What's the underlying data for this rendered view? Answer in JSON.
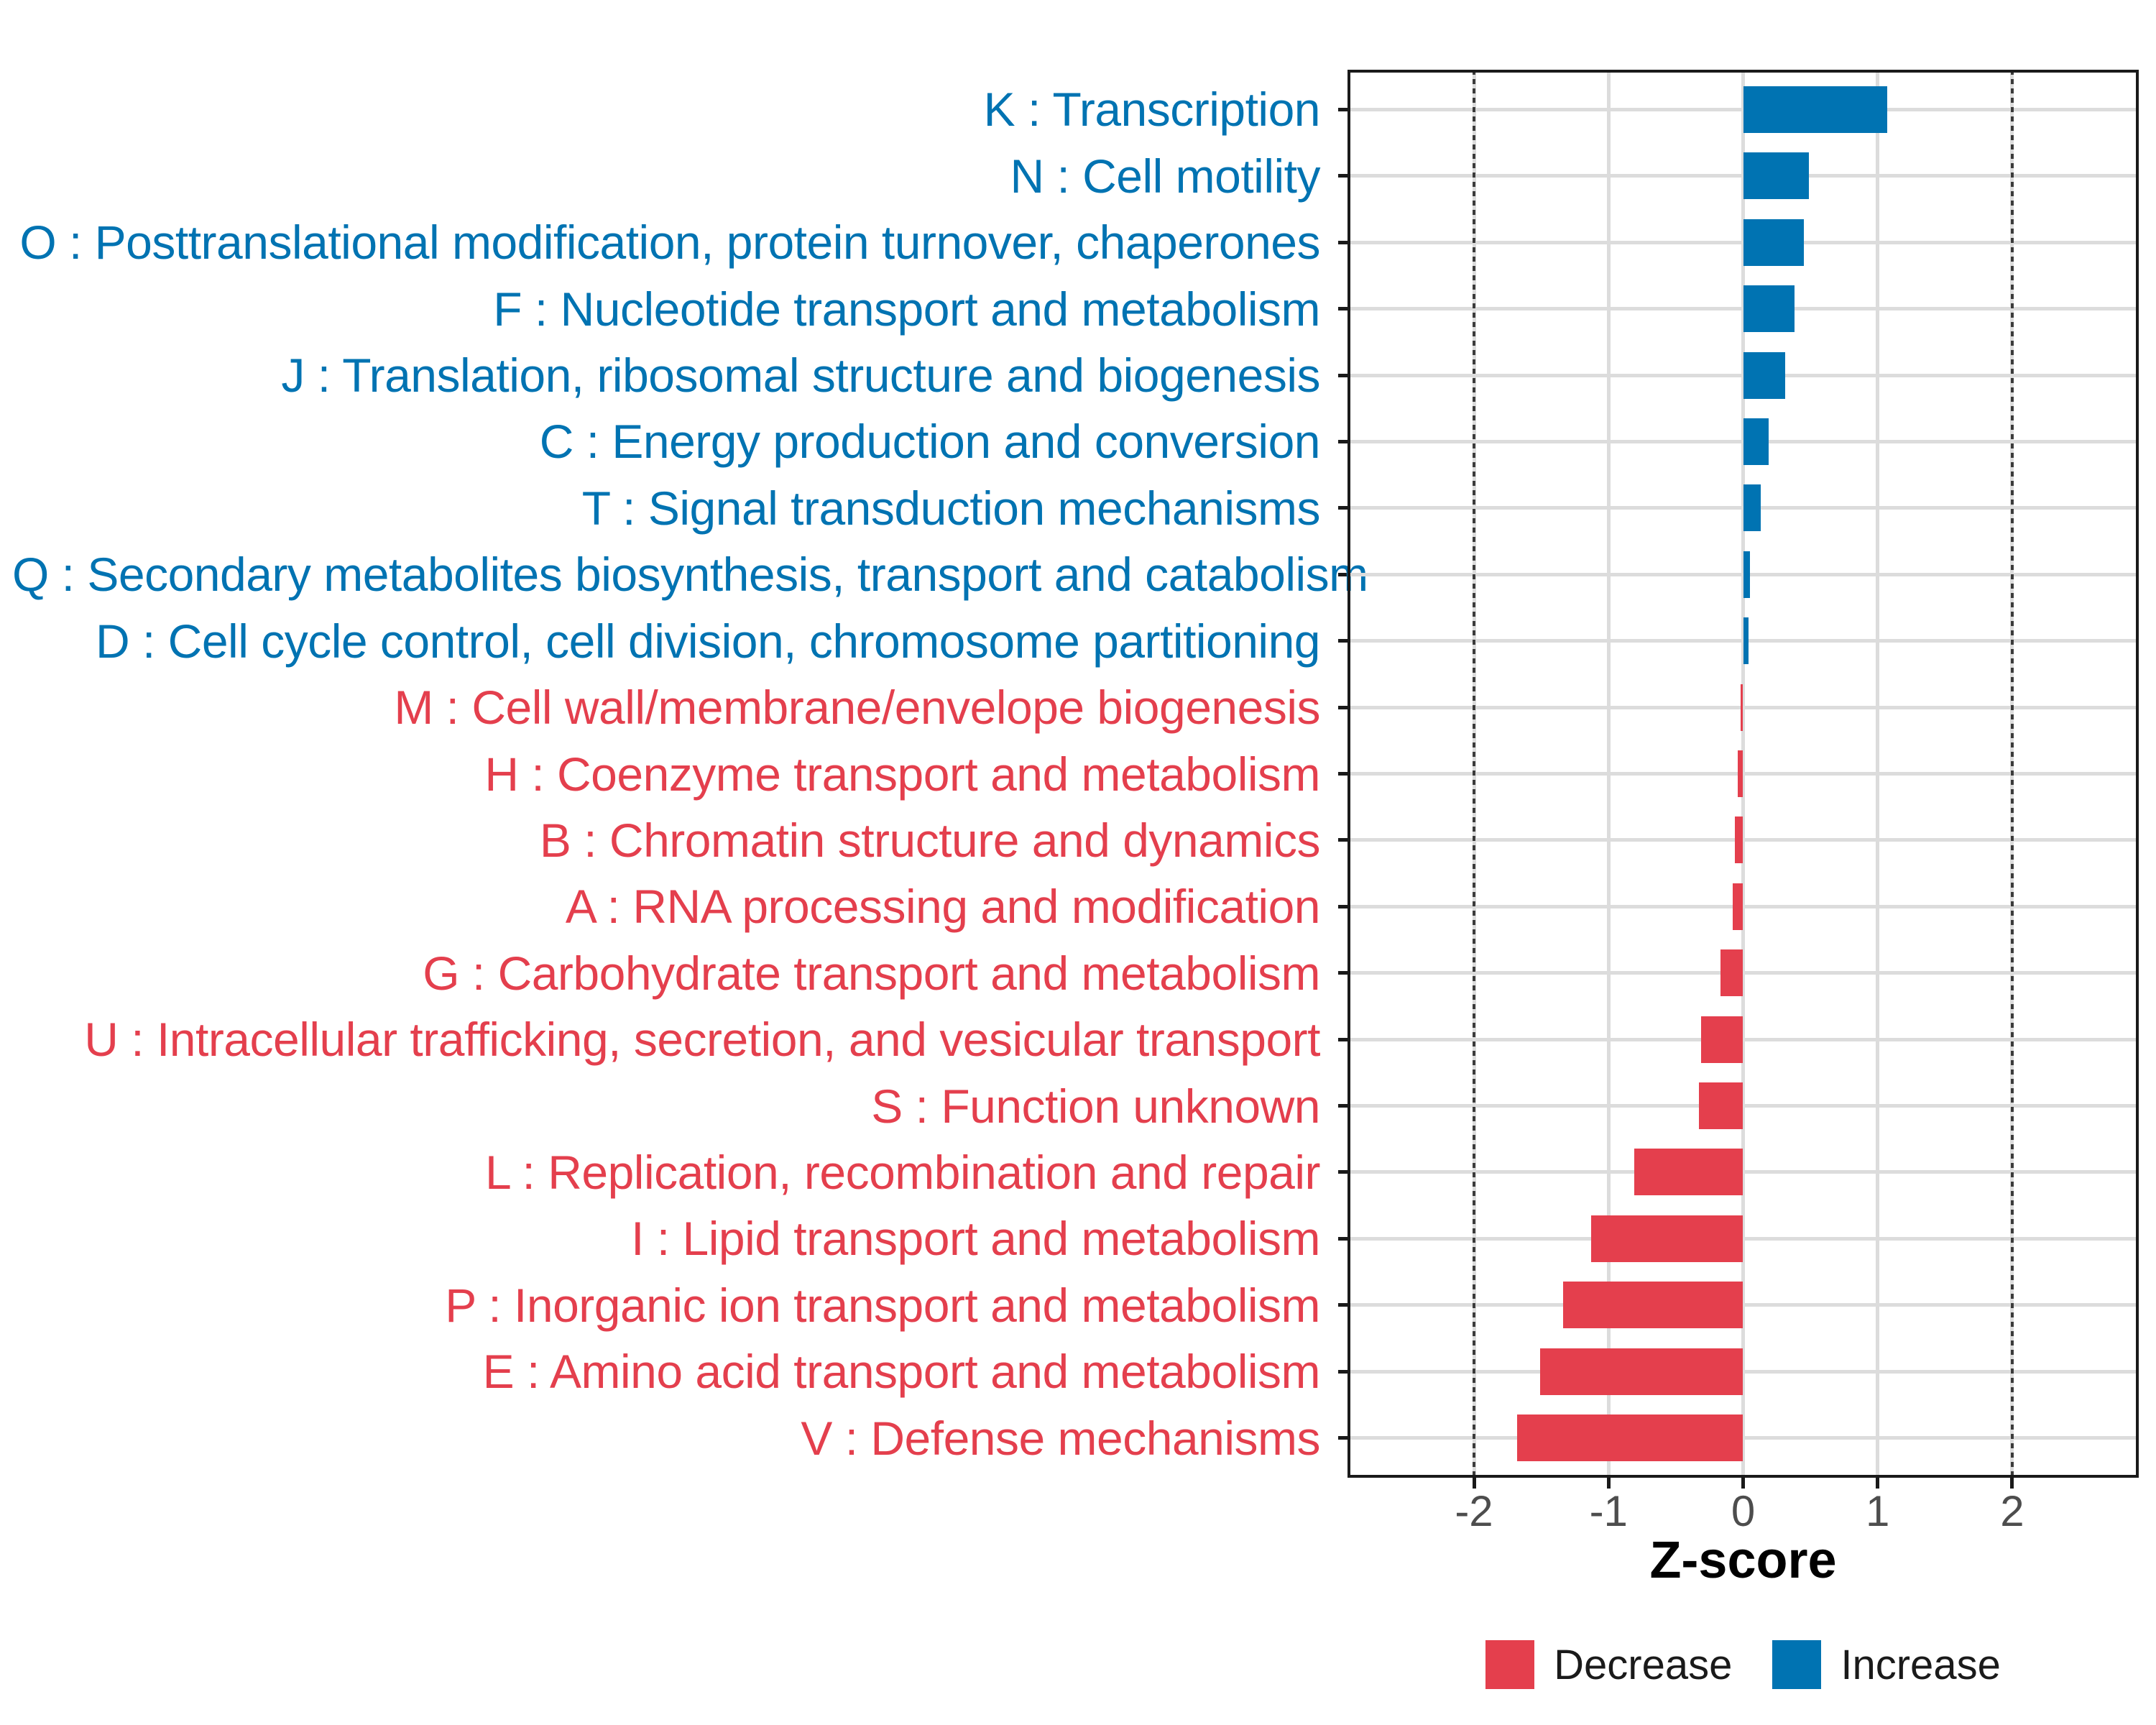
{
  "colors": {
    "increase": "#0073B2",
    "decrease": "#E43F4D",
    "grid": "#DCDCDC",
    "reference_line": "#3B3B3B",
    "axis_text": "#4D4D4D",
    "axis_title_text": "#000000",
    "panel_border": "#1A1A1A",
    "background": "#FFFFFF"
  },
  "chart_data": {
    "type": "bar",
    "orientation": "horizontal",
    "title": "",
    "xlabel": "Z-score",
    "ylabel": "",
    "xlim": [
      -2.94,
      2.94
    ],
    "x_ticks": [
      "-2",
      "-1",
      "0",
      "1",
      "2"
    ],
    "x_tick_values": [
      -2,
      -1,
      0,
      1,
      2
    ],
    "reference_lines": [
      -2,
      2
    ],
    "grid": true,
    "legend_position": "bottom",
    "legend": [
      {
        "label": "Decrease",
        "group": "decrease",
        "color": "#E43F4D"
      },
      {
        "label": "Increase",
        "group": "increase",
        "color": "#0073B2"
      }
    ],
    "categories": [
      {
        "label": "K : Transcription",
        "value": 1.07,
        "group": "increase"
      },
      {
        "label": "N : Cell motility",
        "value": 0.49,
        "group": "increase"
      },
      {
        "label": "O : Posttranslational modification, protein turnover, chaperones",
        "value": 0.45,
        "group": "increase"
      },
      {
        "label": "F : Nucleotide transport and metabolism",
        "value": 0.38,
        "group": "increase"
      },
      {
        "label": "J : Translation, ribosomal structure and biogenesis",
        "value": 0.31,
        "group": "increase"
      },
      {
        "label": "C : Energy production and conversion",
        "value": 0.19,
        "group": "increase"
      },
      {
        "label": "T : Signal transduction mechanisms",
        "value": 0.13,
        "group": "increase"
      },
      {
        "label": "Q : Secondary metabolites biosynthesis, transport and catabolism",
        "value": 0.05,
        "group": "increase"
      },
      {
        "label": "D : Cell cycle control, cell division, chromosome partitioning",
        "value": 0.04,
        "group": "increase"
      },
      {
        "label": "M : Cell wall/membrane/envelope biogenesis",
        "value": -0.02,
        "group": "decrease"
      },
      {
        "label": "H : Coenzyme transport and metabolism",
        "value": -0.04,
        "group": "decrease"
      },
      {
        "label": "B : Chromatin structure and dynamics",
        "value": -0.06,
        "group": "decrease"
      },
      {
        "label": "A : RNA processing and modification",
        "value": -0.08,
        "group": "decrease"
      },
      {
        "label": "G : Carbohydrate transport and metabolism",
        "value": -0.17,
        "group": "decrease"
      },
      {
        "label": "U : Intracellular trafficking, secretion, and vesicular transport",
        "value": -0.31,
        "group": "decrease"
      },
      {
        "label": "S : Function unknown",
        "value": -0.33,
        "group": "decrease"
      },
      {
        "label": "L : Replication, recombination and repair",
        "value": -0.81,
        "group": "decrease"
      },
      {
        "label": "I : Lipid transport and metabolism",
        "value": -1.13,
        "group": "decrease"
      },
      {
        "label": "P : Inorganic ion transport and metabolism",
        "value": -1.34,
        "group": "decrease"
      },
      {
        "label": "E : Amino acid transport and metabolism",
        "value": -1.51,
        "group": "decrease"
      },
      {
        "label": "V : Defense mechanisms",
        "value": -1.68,
        "group": "decrease"
      }
    ]
  }
}
